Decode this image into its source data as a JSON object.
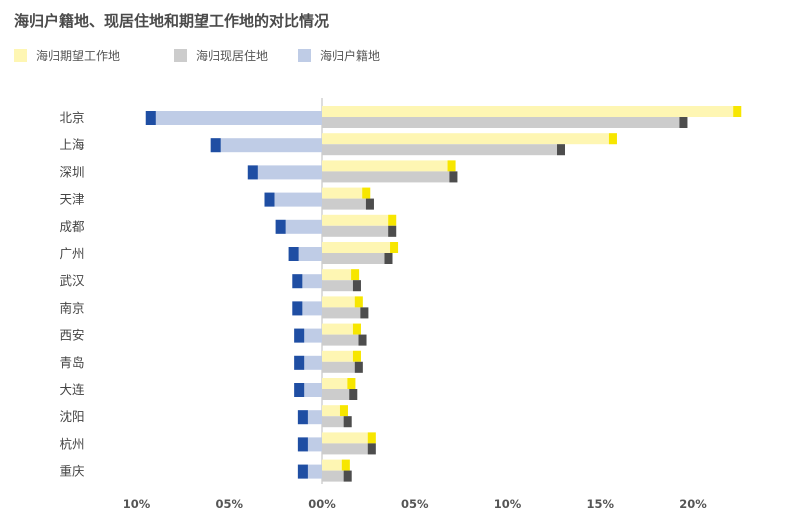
{
  "title": "海归户籍地、现居住地和期望工作地的对比情况",
  "legend": [
    {
      "name": "海归期望工作地",
      "color": "#fef6b3"
    },
    {
      "name": "海归现居住地",
      "color": "#cccccc"
    },
    {
      "name": "海归户籍地",
      "color": "#bfcce6"
    }
  ],
  "chart_data": {
    "type": "bar",
    "orientation": "horizontal",
    "categories": [
      "北京",
      "上海",
      "深圳",
      "天津",
      "成都",
      "广州",
      "武汉",
      "南京",
      "西安",
      "青岛",
      "大连",
      "沈阳",
      "杭州",
      "重庆"
    ],
    "series": [
      {
        "name": "海归期望工作地",
        "color": "#fef6b3",
        "cap_color": "#f7e600",
        "values": [
          22.6,
          15.9,
          7.2,
          2.6,
          4.0,
          4.1,
          2.0,
          2.2,
          2.1,
          2.1,
          1.8,
          1.4,
          2.9,
          1.5
        ]
      },
      {
        "name": "海归现居住地",
        "color": "#cccccc",
        "cap_color": "#4d4d4d",
        "values": [
          19.7,
          13.1,
          7.3,
          2.8,
          4.0,
          3.8,
          2.1,
          2.5,
          2.4,
          2.2,
          1.9,
          1.6,
          2.9,
          1.6
        ]
      },
      {
        "name": "海归户籍地",
        "color": "#bfcce6",
        "cap_color": "#1f4ea3",
        "values": [
          -9.5,
          -6.0,
          -4.0,
          -3.1,
          -2.5,
          -1.8,
          -1.6,
          -1.6,
          -1.5,
          -1.5,
          -1.5,
          -1.3,
          -1.3,
          -1.3
        ]
      }
    ],
    "x_ticks": [
      "10%",
      "05%",
      "00%",
      "05%",
      "10%",
      "15%",
      "20%"
    ],
    "x_tick_values": [
      -10,
      -5,
      0,
      5,
      10,
      15,
      20
    ],
    "xlim": [
      -10,
      22.6
    ],
    "grid": false,
    "legend_position": "top-left"
  }
}
